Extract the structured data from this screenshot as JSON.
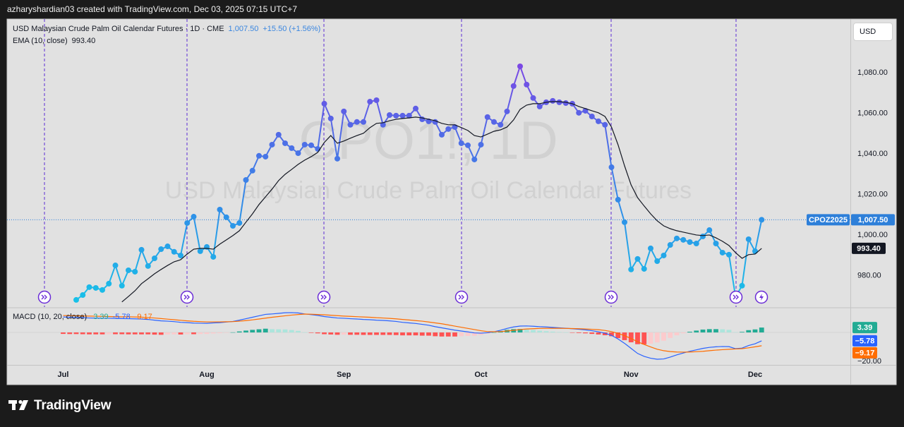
{
  "header": "azharyshardian03 created with TradingView.com, Dec 03, 2025 07:15 UTC+7",
  "footer": "TradingView",
  "currency": "USD",
  "chart_data": [
    {
      "type": "line",
      "title": "USD Malaysian Crude Palm Oil Calendar Futures · 1D · CME",
      "change": "+15.50 (+1.56%)",
      "watermark": "CPO1!, 1D",
      "watermark_subtitle": "USD Malaysian Crude Palm Oil Calendar Futures",
      "categories": [
        "Jul",
        null,
        null,
        null,
        null,
        null,
        null,
        null,
        null,
        null,
        null,
        null,
        null,
        null,
        null,
        null,
        null,
        null,
        null,
        null,
        null,
        null,
        "Aug",
        null,
        null,
        null,
        null,
        null,
        null,
        null,
        null,
        null,
        null,
        null,
        null,
        null,
        null,
        null,
        null,
        null,
        null,
        null,
        null,
        "Sep",
        null,
        null,
        null,
        null,
        null,
        null,
        null,
        null,
        null,
        null,
        null,
        null,
        null,
        null,
        null,
        null,
        null,
        null,
        null,
        null,
        "Oct",
        null,
        null,
        null,
        null,
        null,
        null,
        null,
        null,
        null,
        null,
        null,
        null,
        null,
        null,
        null,
        null,
        null,
        null,
        null,
        null,
        null,
        null,
        "Nov",
        null,
        null,
        null,
        null,
        null,
        null,
        null,
        null,
        null,
        null,
        null,
        null,
        null,
        null,
        null,
        null,
        null,
        null,
        "Dec",
        null
      ],
      "series": [
        {
          "name": "CPOZ2025",
          "gradient": [
            "#17c4e8",
            "#2f8fe8",
            "#5a62e6",
            "#9a2fe3"
          ],
          "last_label": "1,007.50",
          "values": [
            null,
            null,
            968.0,
            970.4,
            974.3,
            973.9,
            972.9,
            976.0,
            985.0,
            975.0,
            982.6,
            981.9,
            992.7,
            984.7,
            988.5,
            993.0,
            994.4,
            991.7,
            989.9,
            1005.9,
            1009.0,
            992.0,
            994.1,
            989.2,
            1012.5,
            1008.7,
            1004.5,
            1005.9,
            1027.1,
            1031.7,
            1039.0,
            1038.6,
            1044.5,
            1049.4,
            1045.2,
            1042.8,
            1040.3,
            1044.5,
            1044.2,
            1042.4,
            1064.7,
            1057.4,
            1037.6,
            1060.9,
            1054.3,
            1055.7,
            1055.7,
            1065.7,
            1066.4,
            1054.3,
            1059.1,
            1058.8,
            1058.8,
            1058.8,
            1062.3,
            1057.0,
            1056.0,
            1055.7,
            1049.4,
            1052.2,
            1053.2,
            1045.2,
            1044.2,
            1037.2,
            1044.5,
            1058.1,
            1055.7,
            1054.3,
            1060.9,
            1073.4,
            1083.1,
            1074.1,
            1067.5,
            1063.3,
            1065.4,
            1066.1,
            1065.4,
            1065.0,
            1064.7,
            1060.2,
            1061.2,
            1058.4,
            1056.0,
            1054.3,
            1033.4,
            1017.4,
            1006.3,
            983.0,
            988.2,
            983.3,
            993.4,
            987.1,
            989.9,
            995.1,
            998.3,
            997.6,
            996.5,
            995.8,
            999.3,
            1002.4,
            995.8,
            991.3,
            990.3,
            969.5,
            975.0,
            997.9,
            992.0,
            1007.5
          ]
        },
        {
          "name": "EMA (10, close)",
          "color": "#131722",
          "last_label": "993.40",
          "values": [
            null,
            null,
            null,
            null,
            null,
            null,
            null,
            null,
            null,
            967.0,
            969.7,
            972.5,
            976.0,
            978.4,
            980.9,
            983.0,
            985.0,
            986.8,
            987.8,
            990.6,
            993.0,
            993.4,
            993.4,
            993.0,
            995.5,
            997.6,
            999.7,
            1002.1,
            1006.3,
            1010.4,
            1015.0,
            1018.8,
            1022.6,
            1026.8,
            1029.9,
            1032.3,
            1034.8,
            1036.9,
            1038.6,
            1040.7,
            1045.6,
            1049.0,
            1045.2,
            1046.3,
            1047.7,
            1049.0,
            1050.1,
            1052.9,
            1055.0,
            1055.3,
            1056.3,
            1057.0,
            1057.4,
            1057.7,
            1058.1,
            1057.7,
            1057.0,
            1056.3,
            1055.0,
            1054.3,
            1054.3,
            1052.9,
            1051.5,
            1049.0,
            1048.3,
            1049.7,
            1051.1,
            1051.8,
            1053.2,
            1056.7,
            1061.9,
            1064.0,
            1064.7,
            1064.7,
            1065.4,
            1065.7,
            1065.7,
            1065.4,
            1064.7,
            1063.3,
            1062.3,
            1061.2,
            1060.2,
            1058.4,
            1053.2,
            1044.5,
            1034.1,
            1024.7,
            1018.4,
            1014.3,
            1010.4,
            1007.0,
            1004.5,
            1003.1,
            1002.1,
            1001.4,
            1000.7,
            1000.0,
            999.7,
            1000.0,
            998.6,
            996.9,
            994.8,
            991.3,
            988.5,
            990.3,
            990.6,
            993.4
          ]
        }
      ],
      "ylim": [
        964.5,
        1106.4
      ],
      "yticks": [
        {
          "value": 980,
          "label": "980.00"
        },
        {
          "value": 1000,
          "label": "1,000.00"
        },
        {
          "value": 1020,
          "label": "1,020.00"
        },
        {
          "value": 1040,
          "label": "1,040.00"
        },
        {
          "value": 1060,
          "label": "1,060.00"
        },
        {
          "value": 1080,
          "label": "1,080.00"
        }
      ],
      "grid": false
    },
    {
      "type": "macd",
      "title": "MACD (10, 20, close)",
      "series": [
        {
          "style": "histogram",
          "colors": [
            "#22ab94",
            "#ace5dc",
            "#fccbcd",
            "#ff5252"
          ],
          "last_label": "3.39",
          "values": [
            -1.0,
            -1.1,
            -1.1,
            -1.2,
            -1.3,
            -1.3,
            -1.3,
            -1.2,
            -1.2,
            -1.2,
            -1.3,
            -1.3,
            -1.3,
            -1.3,
            -1.5,
            -1.6,
            -1.4,
            -1.3,
            -1.4,
            -1.2,
            -1.2,
            -1.1,
            -1.0,
            -0.7,
            -0.5,
            -0.2,
            0.1,
            0.7,
            1.3,
            1.8,
            2.2,
            2.6,
            2.3,
            2.2,
            2.1,
            1.7,
            1.1,
            0.1,
            -0.3,
            -0.6,
            -1.2,
            -1.4,
            -1.6,
            -1.5,
            -1.6,
            -1.6,
            -1.7,
            -1.7,
            -1.7,
            -1.7,
            -1.7,
            -1.8,
            -2.0,
            -2.0,
            -2.0,
            -2.2,
            -2.2,
            -2.6,
            -2.8,
            -2.8,
            -2.8,
            -2.6,
            -2.4,
            -2.3,
            -1.7,
            -0.8,
            0.0,
            0.9,
            1.8,
            2.3,
            2.4,
            2.1,
            1.7,
            1.2,
            0.9,
            0.6,
            0.3,
            0.1,
            -0.1,
            -0.4,
            -0.6,
            -1.0,
            -1.4,
            -1.9,
            -2.6,
            -3.9,
            -5.3,
            -6.8,
            -8.1,
            -8.2,
            -7.8,
            -6.9,
            -5.7,
            -3.8,
            -2.0,
            -0.6,
            0.5,
            1.3,
            2.0,
            2.3,
            2.3,
            2.2,
            1.8,
            0.2,
            0.4,
            1.6,
            2.1,
            3.39
          ]
        },
        {
          "style": "line",
          "color": "#2962ff",
          "last_label": "-5.78",
          "tag_label": "−5.78",
          "values": [
            10.7,
            10.5,
            10.4,
            10.2,
            10.0,
            9.9,
            9.8,
            9.8,
            9.7,
            9.6,
            9.5,
            9.4,
            9.3,
            9.0,
            8.5,
            8.0,
            7.8,
            7.5,
            7.0,
            6.8,
            6.5,
            6.4,
            6.3,
            6.6,
            6.8,
            7.2,
            7.6,
            8.5,
            9.5,
            10.5,
            11.5,
            12.5,
            12.8,
            13.2,
            13.6,
            13.7,
            13.5,
            12.8,
            12.3,
            11.8,
            11.0,
            10.5,
            10.0,
            9.8,
            9.5,
            9.3,
            9.0,
            8.8,
            8.5,
            8.3,
            8.0,
            7.6,
            7.0,
            6.6,
            6.2,
            5.6,
            5.0,
            4.0,
            3.2,
            2.4,
            1.6,
            1.0,
            0.4,
            -0.3,
            -0.5,
            -0.2,
            0.5,
            1.5,
            2.8,
            3.8,
            4.4,
            4.5,
            4.3,
            4.0,
            3.8,
            3.5,
            3.2,
            2.9,
            2.6,
            2.2,
            1.8,
            1.2,
            0.5,
            -0.5,
            -2.0,
            -4.5,
            -7.5,
            -11.0,
            -14.5,
            -16.5,
            -17.8,
            -18.5,
            -18.3,
            -17.0,
            -15.5,
            -14.2,
            -13.0,
            -12.0,
            -11.0,
            -10.3,
            -9.9,
            -9.7,
            -9.8,
            -11.2,
            -10.8,
            -9.0,
            -7.8,
            -5.78
          ]
        },
        {
          "style": "line",
          "color": "#ff6d00",
          "last_label": "-9.17",
          "tag_label": "−9.17",
          "values": [
            11.7,
            11.6,
            11.5,
            11.4,
            11.3,
            11.2,
            11.1,
            11.0,
            10.9,
            10.8,
            10.8,
            10.7,
            10.6,
            10.3,
            10.0,
            9.6,
            9.2,
            8.8,
            8.4,
            8.0,
            7.7,
            7.5,
            7.3,
            7.3,
            7.3,
            7.4,
            7.5,
            7.8,
            8.2,
            8.7,
            9.3,
            9.9,
            10.5,
            11.0,
            11.5,
            12.0,
            12.4,
            12.7,
            12.6,
            12.4,
            12.2,
            11.9,
            11.6,
            11.3,
            11.1,
            10.9,
            10.7,
            10.5,
            10.2,
            10.0,
            9.7,
            9.4,
            9.0,
            8.6,
            8.2,
            7.8,
            7.2,
            6.6,
            6.0,
            5.2,
            4.4,
            3.6,
            2.8,
            2.0,
            1.2,
            0.6,
            0.5,
            0.6,
            1.0,
            1.5,
            2.0,
            2.4,
            2.6,
            2.8,
            2.9,
            2.9,
            2.9,
            2.8,
            2.7,
            2.6,
            2.4,
            2.2,
            1.9,
            1.4,
            0.6,
            -0.6,
            -2.2,
            -4.2,
            -6.4,
            -8.3,
            -10.0,
            -11.6,
            -12.6,
            -13.2,
            -13.5,
            -13.6,
            -13.5,
            -13.3,
            -13.0,
            -12.6,
            -12.2,
            -11.9,
            -11.6,
            -11.4,
            -11.2,
            -10.6,
            -9.9,
            -9.17
          ]
        }
      ],
      "ylim": [
        -22.4,
        16.6
      ],
      "yticks": [
        {
          "value": -20,
          "label": "−20.00"
        }
      ]
    }
  ]
}
